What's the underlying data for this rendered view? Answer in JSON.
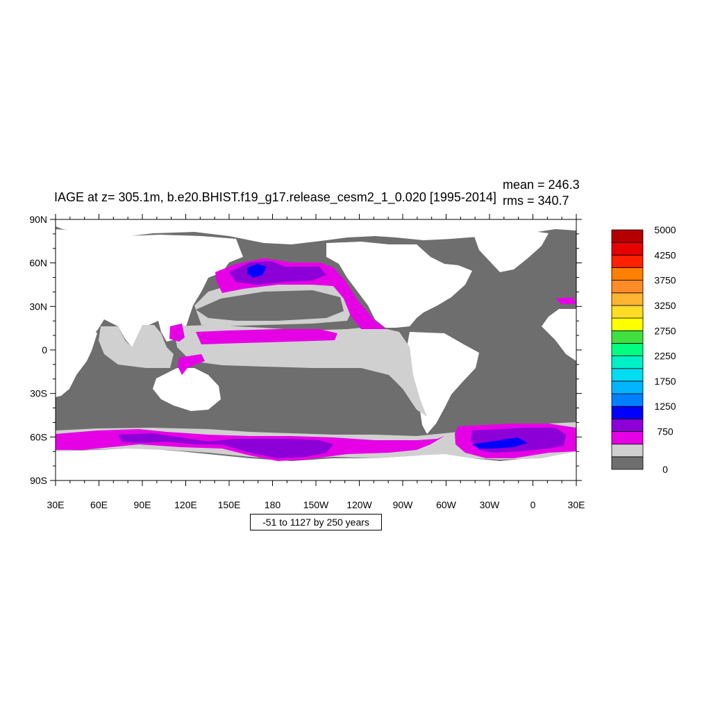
{
  "title": "IAGE at z= 305.1m, b.e20.BHIST.f19_g17.release_cesm2_1_0.020 [1995-2014]",
  "stats": {
    "mean_label": "mean = 246.3",
    "rms_label": "rms = 340.7"
  },
  "contour_info": "-51 to 1127 by 250 years",
  "map": {
    "lon_labels": [
      "30E",
      "60E",
      "90E",
      "120E",
      "150E",
      "180",
      "150W",
      "120W",
      "90W",
      "60W",
      "30W",
      "0",
      "30E"
    ],
    "lat_labels": [
      "90N",
      "60N",
      "30N",
      "0",
      "30S",
      "60S",
      "90S"
    ],
    "land_color": "#ffffff",
    "region_colors": {
      "level0": "#6e6e6e",
      "level250": "#d0d0d0",
      "level500": "#e600e6",
      "level750": "#8c00d7",
      "level1000": "#0000ff"
    }
  },
  "colorbar": {
    "colors": [
      "#6e6e6e",
      "#d0d0d0",
      "#e600e6",
      "#8c00d7",
      "#0000ff",
      "#0080ff",
      "#00b4ff",
      "#00dcf0",
      "#00f0c8",
      "#00ff80",
      "#40e040",
      "#ffff00",
      "#ffdc28",
      "#ffb432",
      "#ff8c28",
      "#ff8000",
      "#ff2000",
      "#e60000",
      "#b40000"
    ],
    "tick_labels": [
      "0",
      "750",
      "1250",
      "1750",
      "2250",
      "2750",
      "3250",
      "3750",
      "4250",
      "5000"
    ]
  }
}
